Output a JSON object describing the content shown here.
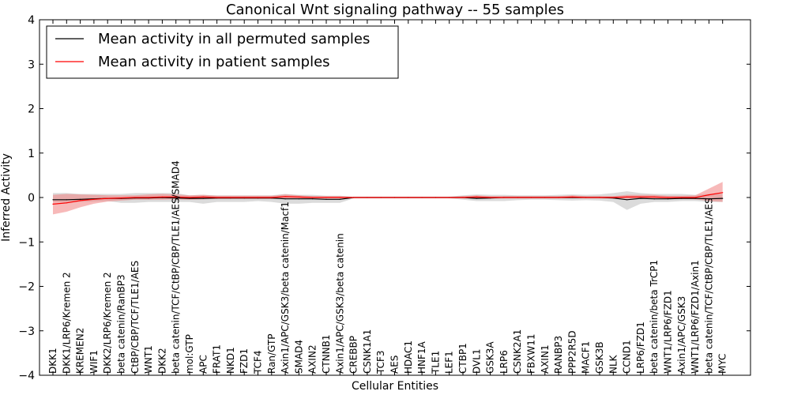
{
  "chart_data": {
    "type": "line",
    "title": "Canonical Wnt signaling pathway -- 55 samples",
    "xlabel": "Cellular Entities",
    "ylabel": "Inferred Activity",
    "ylim": [
      -4,
      4
    ],
    "yticks": [
      -4,
      -3,
      -2,
      -1,
      0,
      1,
      2,
      3,
      4
    ],
    "ytick_labels": [
      "−4",
      "−3",
      "−2",
      "−1",
      "0",
      "1",
      "2",
      "3",
      "4"
    ],
    "grid": false,
    "legend_position": "top-left",
    "categories": [
      "DKK1",
      "DKK1/LRP6/Kremen 2",
      "KREMEN2",
      "WIF1",
      "DKK2/LRP6/Kremen 2",
      "beta catenin/RanBP3",
      "CtBP/CBP/TCF/TLE1/AES",
      "WNT1",
      "DKK2",
      "beta catenin/TCF/CtBP/CBP/TLE1/AES/SMAD4",
      "mol:GTP",
      "APC",
      "FRAT1",
      "NKD1",
      "FZD1",
      "TCF4",
      "Ran/GTP",
      "Axin1/APC/GSK3/beta catenin/Macf1",
      "SMAD4",
      "AXIN2",
      "CTNNB1",
      "Axin1/APC/GSK3/beta catenin",
      "CREBBP",
      "CSNK1A1",
      "TCF3",
      "AES",
      "HDAC1",
      "HNF1A",
      "TLE1",
      "LEF1",
      "CTBP1",
      "DVL1",
      "GSK3A",
      "LRP6",
      "CSNK2A1",
      "FBXW11",
      "AXIN1",
      "RANBP3",
      "PPP2R5D",
      "MACF1",
      "GSK3B",
      "NLK",
      "CCND1",
      "LRP6/FZD1",
      "beta catenin/beta TrCP1",
      "WNT1/LRP6/FZD1",
      "Axin1/APC/GSK3",
      "WNT1/LRP6/FZD1/Axin1",
      "beta catenin/TCF/CtBP/CBP/TLE1/AES",
      "MYC"
    ],
    "series": [
      {
        "name": "Mean activity in all permuted samples",
        "color": "#000000",
        "values": [
          -0.05,
          -0.05,
          -0.04,
          -0.03,
          -0.02,
          -0.02,
          -0.01,
          -0.01,
          0.0,
          -0.01,
          -0.02,
          -0.02,
          -0.01,
          -0.01,
          -0.01,
          -0.01,
          -0.01,
          -0.03,
          -0.03,
          -0.03,
          -0.04,
          -0.04,
          0.0,
          0.0,
          0.0,
          0.0,
          0.0,
          0.0,
          0.0,
          0.0,
          0.0,
          -0.02,
          -0.01,
          0.0,
          0.0,
          0.0,
          0.0,
          0.0,
          0.0,
          0.0,
          0.0,
          -0.01,
          -0.05,
          -0.02,
          -0.03,
          -0.03,
          -0.02,
          -0.02,
          -0.03,
          -0.02
        ],
        "band_low": [
          -0.1,
          -0.12,
          -0.1,
          -0.09,
          -0.08,
          -0.12,
          -0.12,
          -0.1,
          -0.1,
          -0.1,
          -0.1,
          -0.14,
          -0.1,
          -0.1,
          -0.1,
          -0.08,
          -0.1,
          -0.14,
          -0.14,
          -0.12,
          -0.12,
          -0.12,
          -0.02,
          -0.02,
          -0.02,
          -0.02,
          -0.02,
          -0.02,
          -0.02,
          -0.02,
          -0.05,
          -0.08,
          -0.08,
          -0.08,
          -0.06,
          -0.05,
          -0.05,
          -0.06,
          -0.07,
          -0.06,
          -0.07,
          -0.1,
          -0.28,
          -0.14,
          -0.1,
          -0.1,
          -0.08,
          -0.08,
          -0.1,
          -0.1
        ],
        "band_high": [
          0.1,
          0.1,
          0.08,
          0.08,
          0.08,
          0.08,
          0.1,
          0.1,
          0.1,
          0.1,
          0.05,
          0.06,
          0.05,
          0.05,
          0.05,
          0.05,
          0.05,
          0.08,
          0.06,
          0.06,
          0.04,
          0.04,
          0.02,
          0.02,
          0.02,
          0.02,
          0.02,
          0.02,
          0.02,
          0.02,
          0.05,
          0.07,
          0.06,
          0.06,
          0.05,
          0.05,
          0.05,
          0.06,
          0.07,
          0.06,
          0.07,
          0.1,
          0.14,
          0.1,
          0.08,
          0.08,
          0.08,
          0.06,
          0.08,
          0.08
        ]
      },
      {
        "name": "Mean activity in patient samples",
        "color": "#ff0000",
        "band_color": "#f08080",
        "values": [
          -0.15,
          -0.12,
          -0.07,
          -0.04,
          -0.02,
          -0.01,
          0.0,
          0.0,
          0.01,
          0.01,
          0.0,
          0.01,
          0.0,
          0.0,
          0.0,
          0.0,
          0.0,
          0.02,
          0.01,
          0.0,
          0.0,
          0.0,
          0.0,
          0.0,
          0.0,
          0.0,
          0.0,
          0.0,
          0.0,
          0.0,
          0.0,
          0.01,
          0.0,
          0.0,
          0.0,
          0.0,
          0.0,
          0.0,
          0.01,
          0.0,
          0.0,
          0.0,
          0.01,
          0.01,
          0.01,
          0.0,
          0.0,
          0.0,
          0.06,
          0.11
        ],
        "band_low": [
          -0.38,
          -0.32,
          -0.22,
          -0.14,
          -0.09,
          -0.07,
          -0.05,
          -0.05,
          -0.05,
          -0.04,
          -0.05,
          -0.04,
          -0.03,
          -0.03,
          -0.03,
          -0.03,
          -0.03,
          -0.02,
          -0.03,
          -0.02,
          -0.02,
          -0.02,
          -0.01,
          -0.01,
          -0.01,
          -0.01,
          -0.01,
          -0.01,
          -0.01,
          -0.01,
          -0.02,
          -0.02,
          -0.02,
          -0.02,
          -0.02,
          -0.02,
          -0.02,
          -0.02,
          -0.02,
          -0.02,
          -0.02,
          -0.02,
          -0.03,
          -0.03,
          -0.03,
          -0.03,
          -0.03,
          -0.04,
          -0.08,
          -0.1
        ],
        "band_high": [
          0.06,
          0.08,
          0.07,
          0.06,
          0.05,
          0.05,
          0.05,
          0.07,
          0.08,
          0.07,
          0.05,
          0.06,
          0.04,
          0.04,
          0.04,
          0.04,
          0.04,
          0.07,
          0.05,
          0.03,
          0.03,
          0.03,
          0.01,
          0.01,
          0.01,
          0.01,
          0.01,
          0.01,
          0.01,
          0.01,
          0.03,
          0.05,
          0.03,
          0.03,
          0.03,
          0.03,
          0.03,
          0.03,
          0.05,
          0.03,
          0.03,
          0.03,
          0.06,
          0.06,
          0.06,
          0.04,
          0.04,
          0.05,
          0.2,
          0.35
        ]
      }
    ]
  }
}
